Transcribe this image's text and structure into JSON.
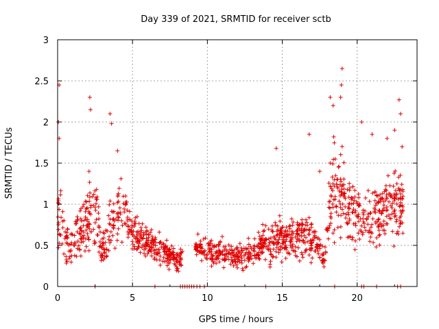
{
  "chart_data": {
    "type": "scatter",
    "title": "Day 339 of 2021, SRMTID for receiver sctb",
    "xlabel": "GPS time / hours",
    "ylabel": "SRMTID / TECUs",
    "xlim": [
      0,
      24
    ],
    "ylim": [
      0,
      3
    ],
    "xticks": [
      0,
      5,
      10,
      15,
      20
    ],
    "xtick_labels": [
      "0",
      "5",
      "10",
      "15",
      "20"
    ],
    "yticks": [
      0,
      0.5,
      1,
      1.5,
      2,
      2.5,
      3
    ],
    "ytick_labels": [
      "0",
      "0.5",
      "1",
      "1.5",
      "2",
      "2.5",
      "3"
    ],
    "grid": true,
    "marker": "plus",
    "series_color": "#e00000",
    "envelope": [
      {
        "t": 0.0,
        "base": 0.85,
        "spread": 0.65
      },
      {
        "t": 0.5,
        "base": 0.55,
        "spread": 0.4
      },
      {
        "t": 1.0,
        "base": 0.6,
        "spread": 0.45
      },
      {
        "t": 2.0,
        "base": 0.8,
        "spread": 0.55
      },
      {
        "t": 2.6,
        "base": 0.9,
        "spread": 0.7
      },
      {
        "t": 3.0,
        "base": 0.45,
        "spread": 0.35
      },
      {
        "t": 3.6,
        "base": 0.75,
        "spread": 0.6
      },
      {
        "t": 4.2,
        "base": 0.95,
        "spread": 0.6
      },
      {
        "t": 5.0,
        "base": 0.65,
        "spread": 0.35
      },
      {
        "t": 6.0,
        "base": 0.55,
        "spread": 0.3
      },
      {
        "t": 7.0,
        "base": 0.45,
        "spread": 0.25
      },
      {
        "t": 8.0,
        "base": 0.3,
        "spread": 0.2
      },
      {
        "t": 9.0,
        "base": 0.5,
        "spread": 0.2
      },
      {
        "t": 10.0,
        "base": 0.45,
        "spread": 0.25
      },
      {
        "t": 11.0,
        "base": 0.4,
        "spread": 0.25
      },
      {
        "t": 12.0,
        "base": 0.35,
        "spread": 0.2
      },
      {
        "t": 13.0,
        "base": 0.4,
        "spread": 0.25
      },
      {
        "t": 14.0,
        "base": 0.55,
        "spread": 0.35
      },
      {
        "t": 15.0,
        "base": 0.55,
        "spread": 0.35
      },
      {
        "t": 16.0,
        "base": 0.6,
        "spread": 0.4
      },
      {
        "t": 17.0,
        "base": 0.55,
        "spread": 0.35
      },
      {
        "t": 17.8,
        "base": 0.35,
        "spread": 0.25
      },
      {
        "t": 18.3,
        "base": 1.2,
        "spread": 0.8
      },
      {
        "t": 19.0,
        "base": 1.15,
        "spread": 0.8
      },
      {
        "t": 20.0,
        "base": 0.85,
        "spread": 0.5
      },
      {
        "t": 21.0,
        "base": 0.85,
        "spread": 0.5
      },
      {
        "t": 22.0,
        "base": 1.0,
        "spread": 0.55
      },
      {
        "t": 23.0,
        "base": 1.0,
        "spread": 0.55
      }
    ],
    "points_count": 1400,
    "peaks": [
      {
        "x": 0.1,
        "y": 2.45
      },
      {
        "x": 0.05,
        "y": 2.0
      },
      {
        "x": 0.1,
        "y": 1.8
      },
      {
        "x": 2.1,
        "y": 1.4
      },
      {
        "x": 2.15,
        "y": 2.3
      },
      {
        "x": 2.2,
        "y": 2.15
      },
      {
        "x": 3.5,
        "y": 2.1
      },
      {
        "x": 3.6,
        "y": 1.98
      },
      {
        "x": 4.0,
        "y": 1.65
      },
      {
        "x": 14.6,
        "y": 1.68
      },
      {
        "x": 16.8,
        "y": 1.85
      },
      {
        "x": 17.5,
        "y": 1.4
      },
      {
        "x": 18.2,
        "y": 2.3
      },
      {
        "x": 18.4,
        "y": 2.2
      },
      {
        "x": 18.9,
        "y": 2.3
      },
      {
        "x": 19.0,
        "y": 2.65
      },
      {
        "x": 18.95,
        "y": 2.45
      },
      {
        "x": 20.3,
        "y": 2.0
      },
      {
        "x": 21.0,
        "y": 1.85
      },
      {
        "x": 22.0,
        "y": 1.8
      },
      {
        "x": 22.5,
        "y": 1.9
      },
      {
        "x": 22.8,
        "y": 2.27
      },
      {
        "x": 22.9,
        "y": 2.1
      },
      {
        "x": 23.0,
        "y": 1.7
      }
    ],
    "zero_points_x": [
      2.5,
      6.5,
      8.2,
      8.35,
      8.5,
      8.65,
      8.8,
      8.95,
      9.1,
      9.3,
      9.5,
      9.8,
      13.9,
      18.5,
      20.3,
      20.45,
      21.3,
      22.7,
      22.9
    ]
  }
}
